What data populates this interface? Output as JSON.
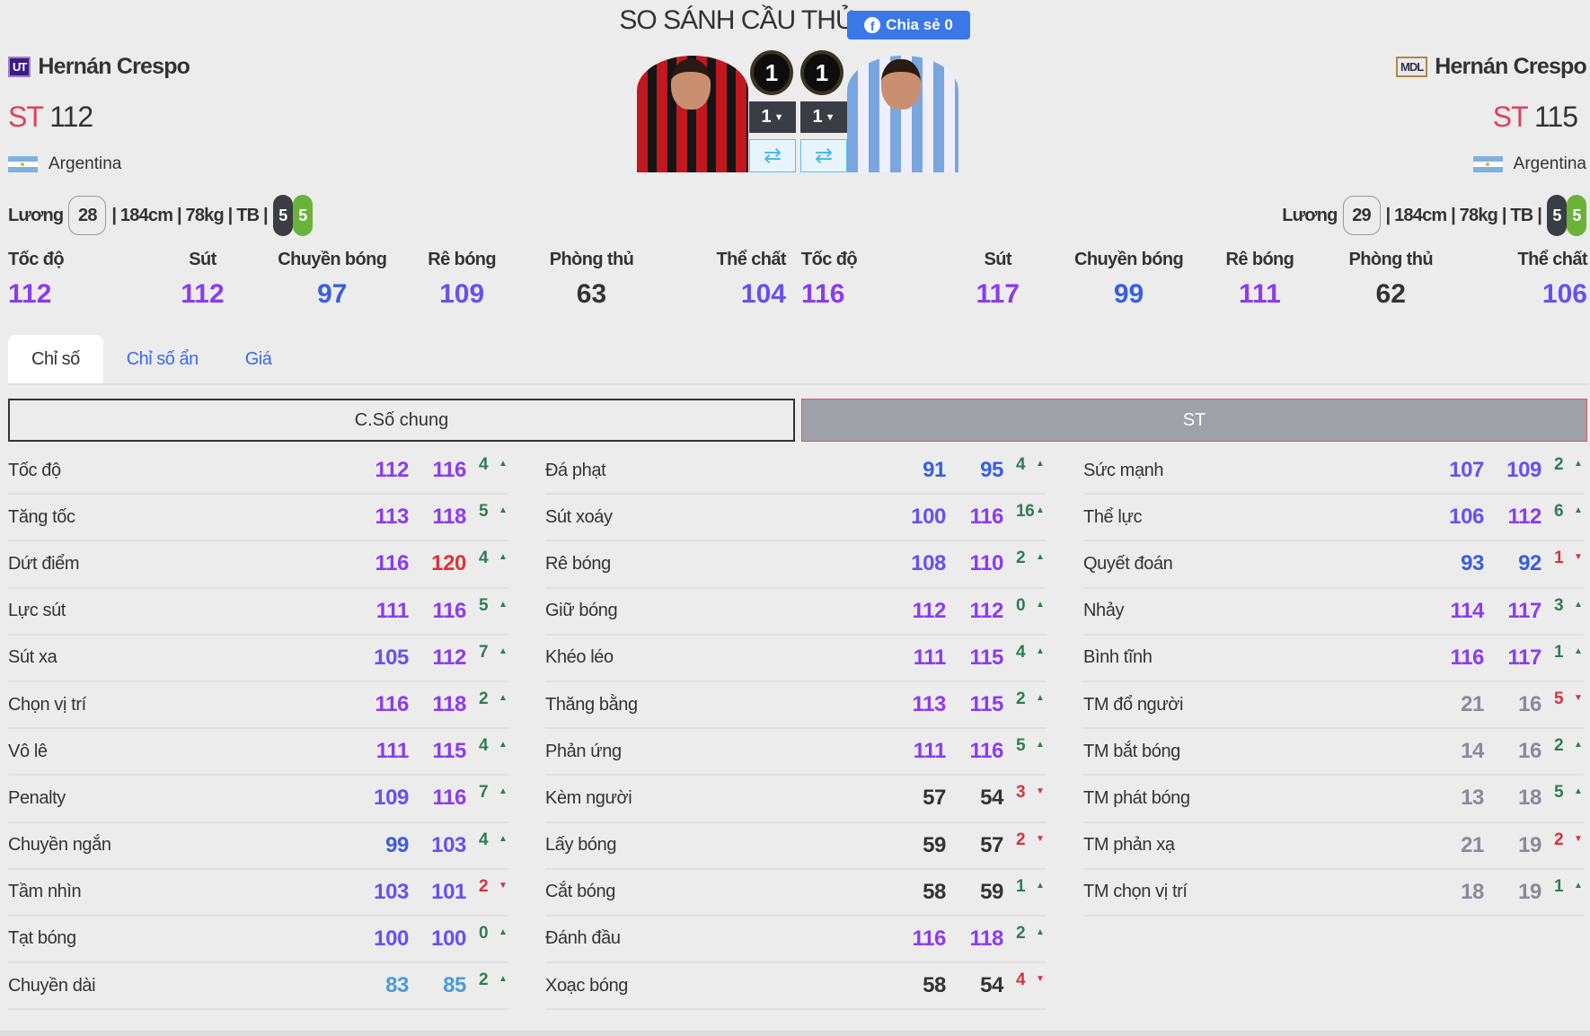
{
  "header": {
    "title": "SO SÁNH CẦU THỦ",
    "share_label": "Chia sẻ 0",
    "share_icon": "facebook-icon"
  },
  "players": [
    {
      "season_badge": "UT",
      "name": "Hernán Crespo",
      "position": "ST",
      "ovr": "112",
      "country": "Argentina",
      "salary_label": "Lương",
      "salary": "28",
      "info": "| 184cm | 78kg | TB |",
      "left_foot": "5",
      "right_foot": "5",
      "level": "1",
      "upgrade": "1",
      "summary": [
        {
          "label": "Tốc độ",
          "value": 112
        },
        {
          "label": "Sút",
          "value": 112
        },
        {
          "label": "Chuyền bóng",
          "value": 97
        },
        {
          "label": "Rê bóng",
          "value": 109
        },
        {
          "label": "Phòng thủ",
          "value": 63
        },
        {
          "label": "Thể chất",
          "value": 104
        }
      ]
    },
    {
      "season_badge": "MDL",
      "name": "Hernán Crespo",
      "position": "ST",
      "ovr": "115",
      "country": "Argentina",
      "salary_label": "Lương",
      "salary": "29",
      "info": "| 184cm | 78kg | TB |",
      "left_foot": "5",
      "right_foot": "5",
      "level": "1",
      "upgrade": "1",
      "summary": [
        {
          "label": "Tốc độ",
          "value": 116
        },
        {
          "label": "Sút",
          "value": 117
        },
        {
          "label": "Chuyền bóng",
          "value": 99
        },
        {
          "label": "Rê bóng",
          "value": 111
        },
        {
          "label": "Phòng thủ",
          "value": 62
        },
        {
          "label": "Thể chất",
          "value": 106
        }
      ]
    }
  ],
  "tabs": [
    {
      "label": "Chỉ số",
      "active": true
    },
    {
      "label": "Chỉ số ẩn"
    },
    {
      "label": "Giá"
    }
  ],
  "sections": {
    "general": "C.Số chung",
    "position": "ST"
  },
  "colors": {
    "accent": "#3b78e7",
    "position": "#e0405a",
    "tier120": "#e0303a",
    "tier110": "#8a3cf0",
    "tier100": "#6a4ff0",
    "tier90": "#3a5ee0",
    "tier80": "#4c9ad6",
    "tier50": "#333333",
    "tierLow": "#8a8a9a",
    "up": "#2e7d4f",
    "down": "#d6323a"
  },
  "stats": [
    [
      [
        "Tốc độ",
        112,
        116,
        4,
        "up"
      ],
      [
        "Tăng tốc",
        113,
        118,
        5,
        "up"
      ],
      [
        "Dứt điểm",
        116,
        120,
        4,
        "up"
      ],
      [
        "Lực sút",
        111,
        116,
        5,
        "up"
      ],
      [
        "Sút xa",
        105,
        112,
        7,
        "up"
      ],
      [
        "Chọn vị trí",
        116,
        118,
        2,
        "up"
      ],
      [
        "Vô lê",
        111,
        115,
        4,
        "up"
      ],
      [
        "Penalty",
        109,
        116,
        7,
        "up"
      ],
      [
        "Chuyền ngắn",
        99,
        103,
        4,
        "up"
      ],
      [
        "Tầm nhìn",
        103,
        101,
        2,
        "down"
      ],
      [
        "Tạt bóng",
        100,
        100,
        0,
        "up"
      ],
      [
        "Chuyền dài",
        83,
        85,
        2,
        "up"
      ]
    ],
    [
      [
        "Đá phạt",
        91,
        95,
        4,
        "up"
      ],
      [
        "Sút xoáy",
        100,
        116,
        16,
        "up"
      ],
      [
        "Rê bóng",
        108,
        110,
        2,
        "up"
      ],
      [
        "Giữ bóng",
        112,
        112,
        0,
        "up"
      ],
      [
        "Khéo léo",
        111,
        115,
        4,
        "up"
      ],
      [
        "Thăng bằng",
        113,
        115,
        2,
        "up"
      ],
      [
        "Phản ứng",
        111,
        116,
        5,
        "up"
      ],
      [
        "Kèm người",
        57,
        54,
        3,
        "down"
      ],
      [
        "Lấy bóng",
        59,
        57,
        2,
        "down"
      ],
      [
        "Cắt bóng",
        58,
        59,
        1,
        "up"
      ],
      [
        "Đánh đầu",
        116,
        118,
        2,
        "up"
      ],
      [
        "Xoạc bóng",
        58,
        54,
        4,
        "down"
      ]
    ],
    [
      [
        "Sức mạnh",
        107,
        109,
        2,
        "up"
      ],
      [
        "Thể lực",
        106,
        112,
        6,
        "up"
      ],
      [
        "Quyết đoán",
        93,
        92,
        1,
        "down"
      ],
      [
        "Nhảy",
        114,
        117,
        3,
        "up"
      ],
      [
        "Bình tĩnh",
        116,
        117,
        1,
        "up"
      ],
      [
        "TM đổ người",
        21,
        16,
        5,
        "down"
      ],
      [
        "TM bắt bóng",
        14,
        16,
        2,
        "up"
      ],
      [
        "TM phát bóng",
        13,
        18,
        5,
        "up"
      ],
      [
        "TM phản xạ",
        21,
        19,
        2,
        "down"
      ],
      [
        "TM chọn vị trí",
        18,
        19,
        1,
        "up"
      ]
    ]
  ]
}
